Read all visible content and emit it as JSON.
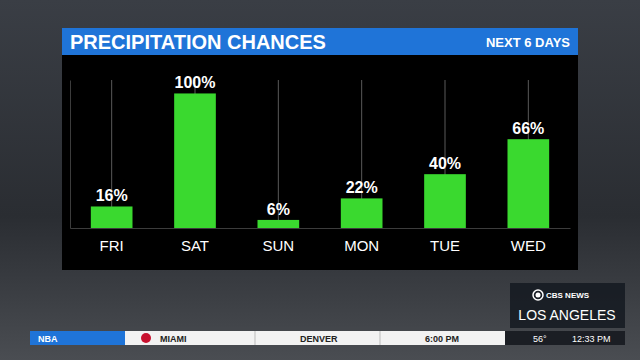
{
  "chart_data": {
    "type": "bar",
    "title": "PRECIPITATION CHANCES",
    "subtitle": "NEXT 6 DAYS",
    "categories": [
      "FRI",
      "SAT",
      "SUN",
      "MON",
      "TUE",
      "WED"
    ],
    "values": [
      16,
      100,
      6,
      22,
      40,
      66
    ],
    "value_labels": [
      "16%",
      "100%",
      "6%",
      "22%",
      "40%",
      "66%"
    ],
    "color": "#3ad92f",
    "ylim": [
      0,
      110
    ],
    "grid": true,
    "data_labels": true,
    "tick_labels": "x"
  },
  "branding": {
    "network": "CBS NEWS",
    "station": "LOS ANGELES"
  },
  "ticker": {
    "league": "NBA",
    "teams": [
      "MIAMI",
      "DENVER"
    ],
    "time": "6:00 PM",
    "temperature": "56°",
    "clock": "12:33 PM"
  }
}
